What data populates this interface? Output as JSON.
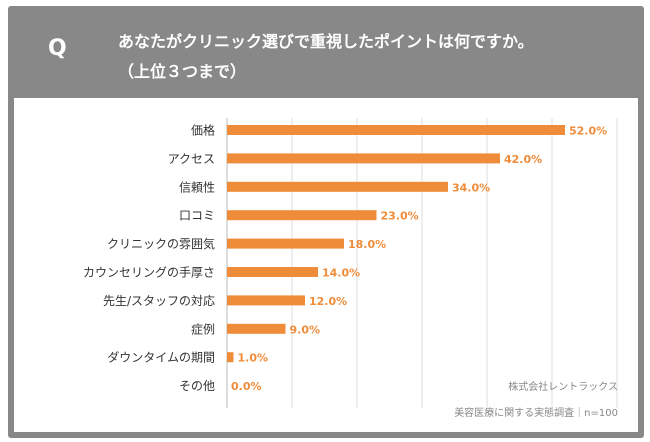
{
  "question": {
    "mark": "Q",
    "line1": "あなたがクリニック選びで重視したポイントは何ですか。",
    "line2": "（上位３つまで）"
  },
  "chart_data": {
    "type": "bar",
    "orientation": "horizontal",
    "categories": [
      "価格",
      "アクセス",
      "信頼性",
      "口コミ",
      "クリニックの雰囲気",
      "カウンセリングの手厚さ",
      "先生/スタッフの対応",
      "症例",
      "ダウンタイムの期間",
      "その他"
    ],
    "values": [
      52.0,
      42.0,
      34.0,
      23.0,
      18.0,
      14.0,
      12.0,
      9.0,
      1.0,
      0.0
    ],
    "value_labels": [
      "52.0%",
      "42.0%",
      "34.0%",
      "23.0%",
      "18.0%",
      "14.0%",
      "12.0%",
      "9.0%",
      "1.0%",
      "0.0%"
    ],
    "xlim": [
      0,
      70
    ],
    "grid": true,
    "bar_color": "#ef8c3a",
    "label_color": "#ef8c3a"
  },
  "footer": {
    "company": "株式会社レントラックス",
    "survey": "美容医療に関する実態調査｜n=100"
  },
  "colors": {
    "header_bg": "#888888",
    "grid": "#dddddd",
    "axis": "#bbbbbb"
  }
}
